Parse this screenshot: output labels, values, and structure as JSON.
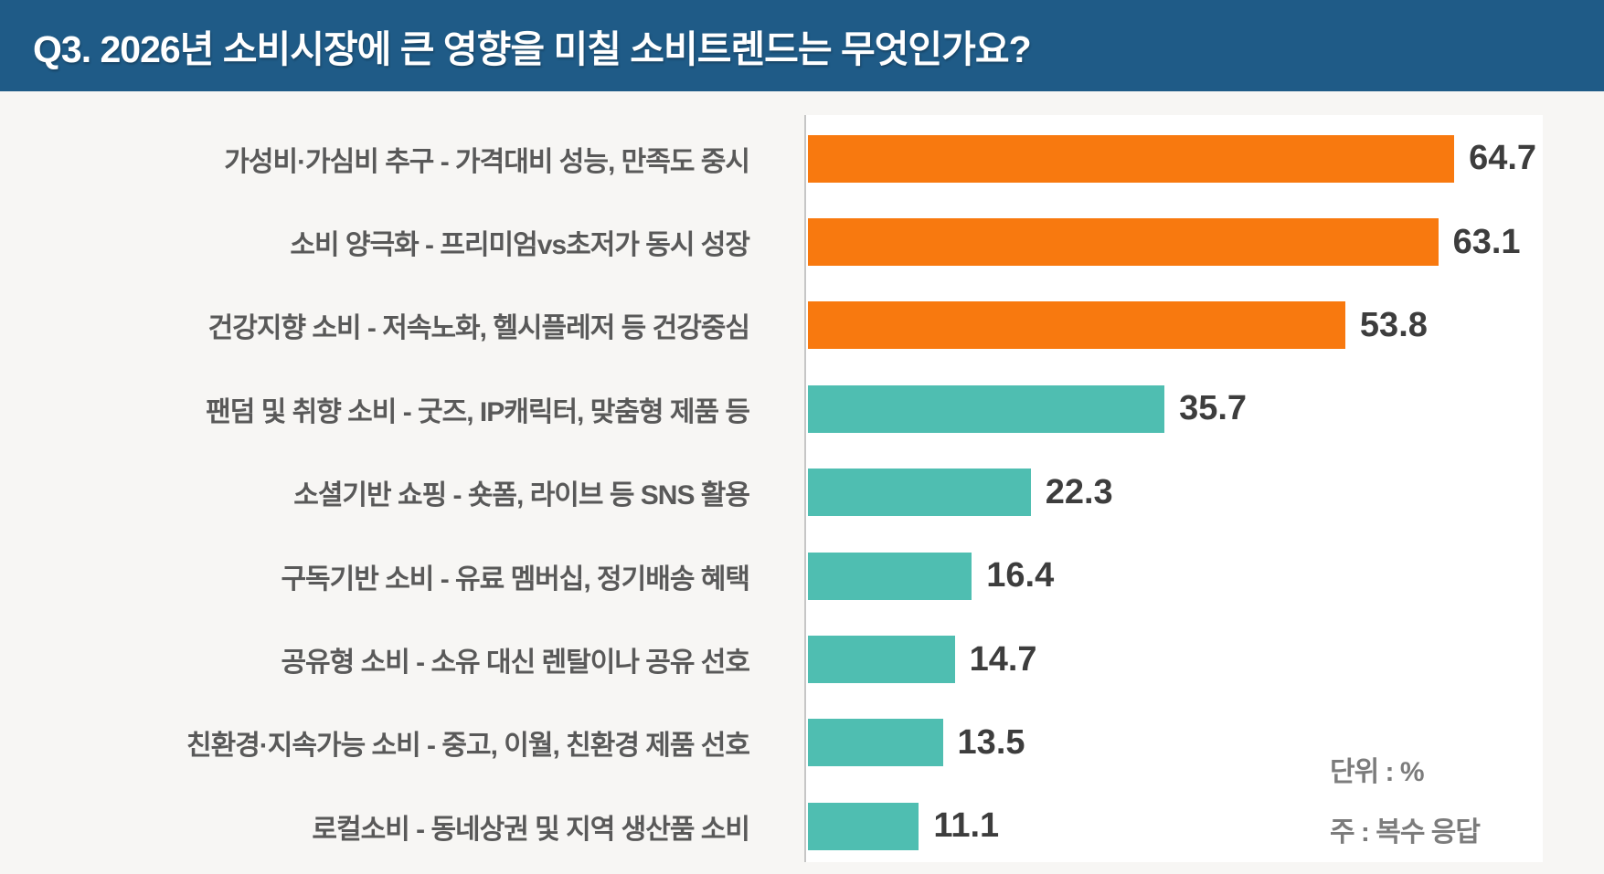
{
  "header": {
    "title": "Q3. 2026년 소비시장에 큰 영향을 미칠 소비트렌드는 무엇인가요?"
  },
  "colors": {
    "header_bg": "#1f5b87",
    "orange": "#f8790f",
    "teal": "#4fbeb1",
    "label_text": "#595959",
    "value_text": "#3d3d3d",
    "note_text": "#7c7c7c",
    "page_bg": "#f7f6f4",
    "plot_bg": "#ffffff",
    "axis_line": "#c6c6c6"
  },
  "notes": {
    "unit": "단위 : %",
    "multi_response": "주 : 복수 응답"
  },
  "chart_data": {
    "type": "bar",
    "orientation": "horizontal",
    "title": "Q3. 2026년 소비시장에 큰 영향을 미칠 소비트렌드는 무엇인가요?",
    "unit": "%",
    "note": "복수 응답",
    "categories": [
      "가성비·가심비 추구 - 가격대비 성능, 만족도 중시",
      "소비 양극화 - 프리미엄vs초저가 동시 성장",
      "건강지향 소비 - 저속노화, 헬시플레저 등 건강중심",
      "팬덤 및 취향 소비 - 굿즈, IP캐릭터, 맞춤형 제품 등",
      "소셜기반 쇼핑 - 숏폼, 라이브 등 SNS 활용",
      "구독기반 소비 - 유료 멤버십, 정기배송 혜택",
      "공유형 소비 - 소유 대신 렌탈이나 공유 선호",
      "친환경·지속가능 소비 - 중고, 이월, 친환경 제품 선호",
      "로컬소비 - 동네상권 및 지역 생산품 소비"
    ],
    "values": [
      64.7,
      63.1,
      53.8,
      35.7,
      22.3,
      16.4,
      14.7,
      13.5,
      11.1
    ],
    "bar_colors": [
      "#f8790f",
      "#f8790f",
      "#f8790f",
      "#4fbeb1",
      "#4fbeb1",
      "#4fbeb1",
      "#4fbeb1",
      "#4fbeb1",
      "#4fbeb1"
    ],
    "xlim": [
      0,
      79.7
    ],
    "grid": false,
    "legend": false
  }
}
